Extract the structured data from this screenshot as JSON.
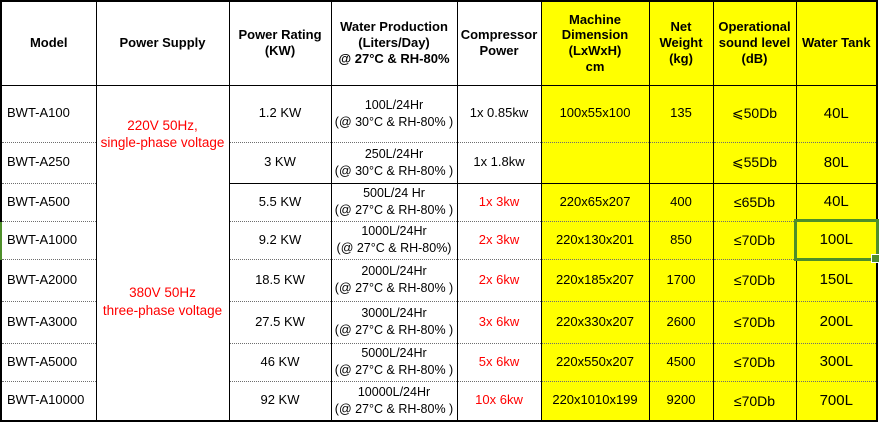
{
  "table": {
    "headers": [
      {
        "label": "Model",
        "yellow": false
      },
      {
        "label": "Power Supply",
        "yellow": false
      },
      {
        "label": "Power Rating\n(KW)",
        "yellow": false
      },
      {
        "label": "Water Production\n(Liters/Day)\n@ 27°C & RH-80%",
        "yellow": false
      },
      {
        "label": "Compressor\nPower",
        "yellow": false
      },
      {
        "label": "Machine\nDimension\n(LxWxH)\ncm",
        "yellow": true
      },
      {
        "label": "Net\nWeight\n(kg)",
        "yellow": true
      },
      {
        "label": "Operational\nsound level\n(dB)",
        "yellow": true
      },
      {
        "label": "Water Tank",
        "yellow": true
      }
    ],
    "power_supply": {
      "group1": "220V 50Hz,\nsingle-phase voltage",
      "group2": "380V 50Hz\nthree-phase voltage"
    },
    "rows": [
      {
        "model": "BWT-A100",
        "power_rating": "1.2 KW",
        "water_production": "100L/24Hr\n(@ 30°C & RH-80% )",
        "compressor": "1x 0.85kw",
        "compressor_red": false,
        "dimension": "100x55x100",
        "net_weight": "135",
        "sound_level": "⩽50Db",
        "water_tank": "40L",
        "selected": false
      },
      {
        "model": "BWT-A250",
        "power_rating": "3 KW",
        "water_production": "250L/24Hr\n(@ 30°C & RH-80% )",
        "compressor": "1x 1.8kw",
        "compressor_red": false,
        "dimension": "",
        "net_weight": "",
        "sound_level": "⩽55Db",
        "water_tank": "80L",
        "selected": false
      },
      {
        "model": "BWT-A500",
        "power_rating": "5.5 KW",
        "water_production": "500L/24 Hr\n(@ 27°C & RH-80% )",
        "compressor": "1x 3kw",
        "compressor_red": true,
        "dimension": "220x65x207",
        "net_weight": "400",
        "sound_level": "≤65Db",
        "water_tank": "40L",
        "selected": false
      },
      {
        "model": "BWT-A1000",
        "power_rating": "9.2 KW",
        "water_production": "1000L/24Hr\n(@ 27°C & RH-80%)",
        "compressor": "2x 3kw",
        "compressor_red": true,
        "dimension": "220x130x201",
        "net_weight": "850",
        "sound_level": "≤70Db",
        "water_tank": "100L",
        "selected": true
      },
      {
        "model": "BWT-A2000",
        "power_rating": "18.5 KW",
        "water_production": "2000L/24Hr\n(@ 27°C & RH-80% )",
        "compressor": "2x 6kw",
        "compressor_red": true,
        "dimension": "220x185x207",
        "net_weight": "1700",
        "sound_level": "≤70Db",
        "water_tank": "150L",
        "selected": false
      },
      {
        "model": "BWT-A3000",
        "power_rating": "27.5 KW",
        "water_production": "3000L/24Hr\n(@ 27°C & RH-80% )",
        "compressor": "3x 6kw",
        "compressor_red": true,
        "dimension": "220x330x207",
        "net_weight": "2600",
        "sound_level": "≤70Db",
        "water_tank": "200L",
        "selected": false
      },
      {
        "model": "BWT-A5000",
        "power_rating": "46 KW",
        "water_production": "5000L/24Hr\n(@ 27°C & RH-80% )",
        "compressor": "5x 6kw",
        "compressor_red": true,
        "dimension": "220x550x207",
        "net_weight": "4500",
        "sound_level": "≤70Db",
        "water_tank": "300L",
        "selected": false
      },
      {
        "model": "BWT-A10000",
        "power_rating": "92 KW",
        "water_production": "10000L/24Hr\n(@ 27°C & RH-80% )",
        "compressor": "10x 6kw",
        "compressor_red": true,
        "dimension": "220x1010x199",
        "net_weight": "9200",
        "sound_level": "≤70Db",
        "water_tank": "700L",
        "selected": false
      }
    ],
    "selection": {
      "selected_row": "BWT-A1000",
      "selected_column": "Water Tank",
      "selected_value": "100L"
    },
    "colors": {
      "highlight_yellow": "#ffff00",
      "accent_red": "#ff0000",
      "selection_green": "#4e8e2a",
      "border_black": "#000000"
    }
  }
}
